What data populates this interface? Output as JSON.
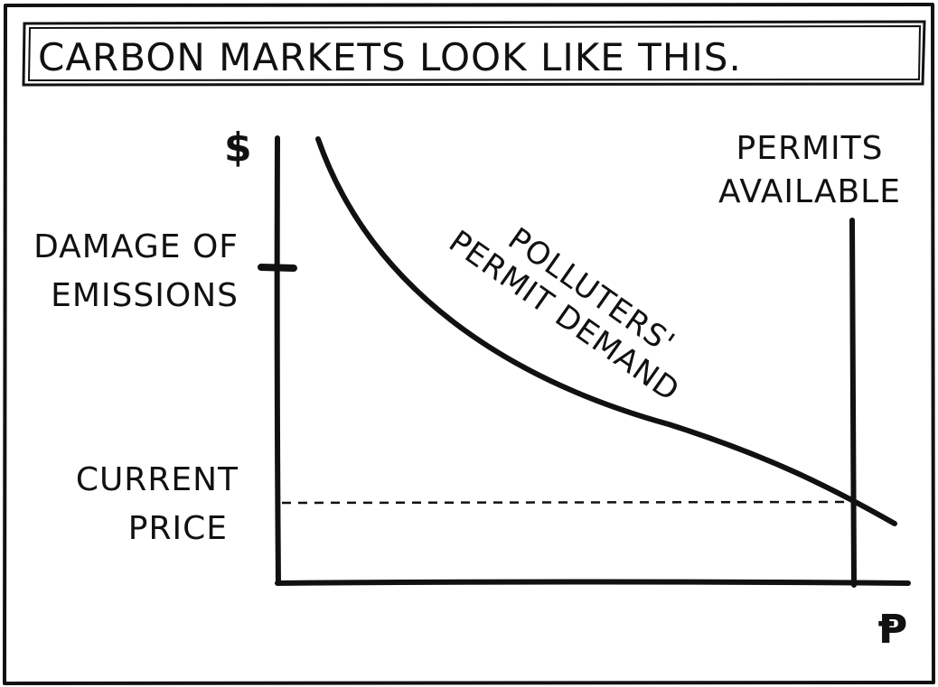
{
  "title": "CARBON MARKETS LOOK LIKE THIS.",
  "chart_data": {
    "type": "line",
    "xlabel": "Ᵽ",
    "ylabel": "$",
    "series": [
      {
        "name": "POLLUTERS' PERMIT DEMAND"
      }
    ],
    "annotations": {
      "permits_line": [
        "PERMITS",
        "AVAILABLE"
      ],
      "damage_tick": [
        "DAMAGE OF",
        "EMISSIONS"
      ],
      "price_line": [
        "CURRENT",
        "PRICE"
      ],
      "curve_label": [
        "POLLUTERS'",
        "PERMIT DEMAND"
      ]
    },
    "grid": false,
    "legend": "none"
  }
}
